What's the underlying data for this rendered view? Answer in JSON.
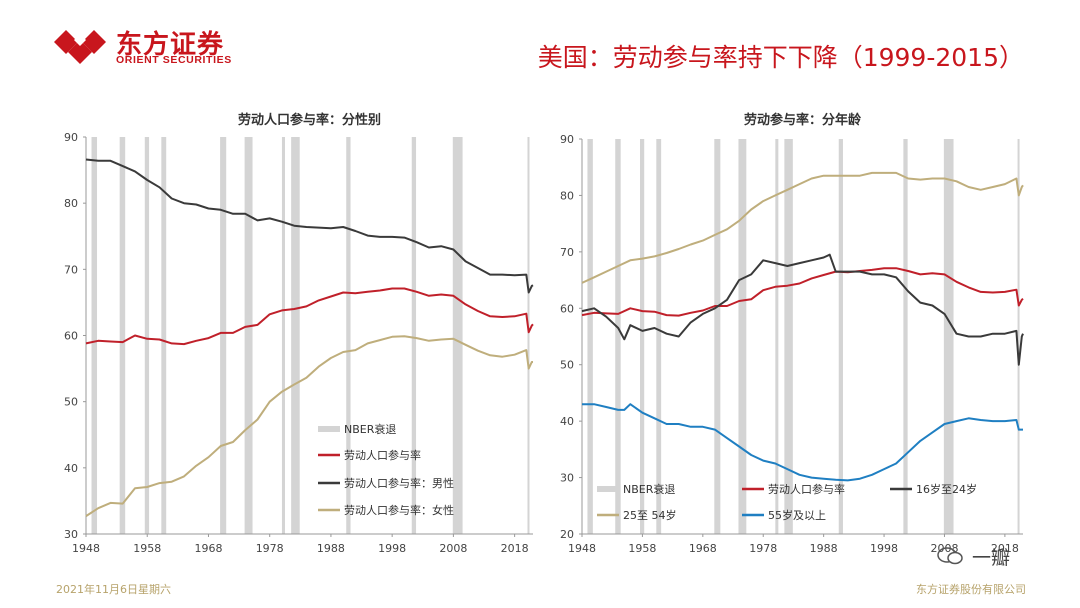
{
  "header": {
    "brand_cn": "东方证券",
    "brand_en": "ORIENT SECURITIES",
    "slide_title": "美国：劳动参与率持下下降（1999-2015）"
  },
  "footer": {
    "date": "2021年11月6日星期六",
    "company": "东方证券股份有限公司",
    "watermark": "一瓣"
  },
  "colors": {
    "brand_red": "#c8161d",
    "total": "#c0202a",
    "male": "#3a3a3a",
    "female": "#bfae7c",
    "age1624": "#3a3a3a",
    "age2554": "#bfae7c",
    "age55": "#1f7fc2",
    "recession": "#d4d4d4",
    "footer_gold": "#b7a36b"
  },
  "chart_data": [
    {
      "type": "line",
      "title": "劳动人口参与率：分性别",
      "xlim": [
        1948,
        2021
      ],
      "ylim": [
        30,
        90
      ],
      "x_ticks": [
        1948,
        1958,
        1968,
        1978,
        1988,
        1998,
        2008,
        2018
      ],
      "y_ticks": [
        30,
        40,
        50,
        60,
        70,
        80,
        90
      ],
      "recessions": [
        [
          1948.9,
          1949.8
        ],
        [
          1953.5,
          1954.4
        ],
        [
          1957.6,
          1958.3
        ],
        [
          1960.3,
          1961.1
        ],
        [
          1969.9,
          1970.9
        ],
        [
          1973.9,
          1975.2
        ],
        [
          1980.0,
          1980.5
        ],
        [
          1981.5,
          1982.9
        ],
        [
          1990.5,
          1991.2
        ],
        [
          2001.2,
          2001.9
        ],
        [
          2007.9,
          2009.5
        ],
        [
          2020.1,
          2020.4
        ]
      ],
      "legend": [
        "NBER衰退",
        "劳动人口参与率",
        "劳动人口参与率：男性",
        "劳动人口参与率：女性"
      ],
      "series": [
        {
          "name": "劳动人口参与率",
          "color_key": "total",
          "x": [
            1948,
            1950,
            1952,
            1954,
            1956,
            1958,
            1960,
            1962,
            1964,
            1966,
            1968,
            1970,
            1972,
            1974,
            1976,
            1978,
            1980,
            1982,
            1984,
            1986,
            1988,
            1990,
            1992,
            1994,
            1996,
            1998,
            2000,
            2002,
            2004,
            2006,
            2008,
            2010,
            2012,
            2014,
            2016,
            2018,
            2019.9,
            2020.3,
            2020.8,
            2021
          ],
          "y": [
            58.8,
            59.2,
            59.1,
            59.0,
            60.0,
            59.5,
            59.4,
            58.8,
            58.7,
            59.2,
            59.6,
            60.4,
            60.4,
            61.3,
            61.6,
            63.2,
            63.8,
            64.0,
            64.4,
            65.3,
            65.9,
            66.5,
            66.4,
            66.6,
            66.8,
            67.1,
            67.1,
            66.6,
            66.0,
            66.2,
            66.0,
            64.7,
            63.7,
            62.9,
            62.8,
            62.9,
            63.3,
            60.5,
            61.5,
            61.7
          ]
        },
        {
          "name": "劳动人口参与率：男性",
          "color_key": "male",
          "x": [
            1948,
            1950,
            1952,
            1954,
            1956,
            1958,
            1960,
            1962,
            1964,
            1966,
            1968,
            1970,
            1972,
            1974,
            1976,
            1978,
            1980,
            1982,
            1984,
            1986,
            1988,
            1990,
            1992,
            1994,
            1996,
            1998,
            2000,
            2002,
            2004,
            2006,
            2008,
            2010,
            2012,
            2014,
            2016,
            2018,
            2019.9,
            2020.3,
            2020.8,
            2021
          ],
          "y": [
            86.6,
            86.4,
            86.4,
            85.6,
            84.8,
            83.5,
            82.4,
            80.7,
            80.0,
            79.8,
            79.2,
            79.0,
            78.4,
            78.4,
            77.4,
            77.7,
            77.2,
            76.6,
            76.4,
            76.3,
            76.2,
            76.4,
            75.8,
            75.1,
            74.9,
            74.9,
            74.8,
            74.1,
            73.3,
            73.5,
            73.0,
            71.2,
            70.2,
            69.2,
            69.2,
            69.1,
            69.2,
            66.5,
            67.5,
            67.6
          ]
        },
        {
          "name": "劳动人口参与率：女性",
          "color_key": "female",
          "x": [
            1948,
            1950,
            1952,
            1954,
            1956,
            1958,
            1960,
            1962,
            1964,
            1966,
            1968,
            1970,
            1972,
            1974,
            1976,
            1978,
            1980,
            1982,
            1984,
            1986,
            1988,
            1990,
            1992,
            1994,
            1996,
            1998,
            2000,
            2002,
            2004,
            2006,
            2008,
            2010,
            2012,
            2014,
            2016,
            2018,
            2019.9,
            2020.3,
            2020.8,
            2021
          ],
          "y": [
            32.7,
            33.9,
            34.7,
            34.6,
            36.9,
            37.1,
            37.7,
            37.9,
            38.7,
            40.3,
            41.6,
            43.3,
            43.9,
            45.7,
            47.3,
            50.0,
            51.5,
            52.6,
            53.6,
            55.3,
            56.6,
            57.5,
            57.8,
            58.8,
            59.3,
            59.8,
            59.9,
            59.6,
            59.2,
            59.4,
            59.5,
            58.6,
            57.7,
            57.0,
            56.8,
            57.1,
            57.8,
            55.0,
            56.0,
            56.0
          ]
        }
      ]
    },
    {
      "type": "line",
      "title": "劳动参与率：分年龄",
      "xlim": [
        1948,
        2021
      ],
      "ylim": [
        20,
        90
      ],
      "x_ticks": [
        1948,
        1958,
        1968,
        1978,
        1988,
        1998,
        2008,
        2018
      ],
      "y_ticks": [
        20,
        30,
        40,
        50,
        60,
        70,
        80,
        90
      ],
      "recessions": [
        [
          1948.9,
          1949.8
        ],
        [
          1953.5,
          1954.4
        ],
        [
          1957.6,
          1958.3
        ],
        [
          1960.3,
          1961.1
        ],
        [
          1969.9,
          1970.9
        ],
        [
          1973.9,
          1975.2
        ],
        [
          1980.0,
          1980.5
        ],
        [
          1981.5,
          1982.9
        ],
        [
          1990.5,
          1991.2
        ],
        [
          2001.2,
          2001.9
        ],
        [
          2007.9,
          2009.5
        ],
        [
          2020.1,
          2020.4
        ]
      ],
      "legend": [
        "NBER衰退",
        "劳动人口参与率",
        "16岁至24岁",
        "25至 54岁",
        "55岁及以上"
      ],
      "series": [
        {
          "name": "劳动人口参与率",
          "color_key": "total",
          "x": [
            1948,
            1950,
            1952,
            1954,
            1956,
            1958,
            1960,
            1962,
            1964,
            1966,
            1968,
            1970,
            1972,
            1974,
            1976,
            1978,
            1980,
            1982,
            1984,
            1986,
            1988,
            1990,
            1992,
            1994,
            1996,
            1998,
            2000,
            2002,
            2004,
            2006,
            2008,
            2010,
            2012,
            2014,
            2016,
            2018,
            2019.9,
            2020.3,
            2020.8,
            2021
          ],
          "y": [
            58.8,
            59.2,
            59.1,
            59.0,
            60.0,
            59.5,
            59.4,
            58.8,
            58.7,
            59.2,
            59.6,
            60.4,
            60.4,
            61.3,
            61.6,
            63.2,
            63.8,
            64.0,
            64.4,
            65.3,
            65.9,
            66.5,
            66.4,
            66.6,
            66.8,
            67.1,
            67.1,
            66.6,
            66.0,
            66.2,
            66.0,
            64.7,
            63.7,
            62.9,
            62.8,
            62.9,
            63.3,
            60.5,
            61.5,
            61.7
          ]
        },
        {
          "name": "16岁至24岁",
          "color_key": "age1624",
          "x": [
            1948,
            1950,
            1952,
            1954,
            1955,
            1956,
            1958,
            1960,
            1962,
            1964,
            1966,
            1968,
            1970,
            1972,
            1974,
            1976,
            1978,
            1980,
            1982,
            1984,
            1986,
            1988,
            1989,
            1990,
            1992,
            1994,
            1996,
            1998,
            2000,
            2002,
            2004,
            2006,
            2008,
            2010,
            2012,
            2014,
            2016,
            2018,
            2019.9,
            2020.3,
            2020.8,
            2021
          ],
          "y": [
            59.5,
            60.0,
            58.5,
            56.5,
            54.5,
            57.0,
            56.0,
            56.5,
            55.5,
            55.0,
            57.5,
            59.0,
            60.0,
            61.5,
            65.0,
            66.0,
            68.5,
            68.0,
            67.5,
            68.0,
            68.5,
            69.0,
            69.5,
            66.5,
            66.5,
            66.5,
            66.0,
            66.0,
            65.5,
            63.0,
            61.0,
            60.5,
            59.0,
            55.5,
            55.0,
            55.0,
            55.5,
            55.5,
            56.0,
            50.0,
            55.0,
            55.5
          ]
        },
        {
          "name": "25至 54岁",
          "color_key": "age2554",
          "x": [
            1948,
            1950,
            1952,
            1954,
            1956,
            1958,
            1960,
            1962,
            1964,
            1966,
            1968,
            1970,
            1972,
            1974,
            1976,
            1978,
            1980,
            1982,
            1984,
            1986,
            1988,
            1990,
            1992,
            1994,
            1996,
            1998,
            2000,
            2002,
            2004,
            2006,
            2008,
            2010,
            2012,
            2014,
            2016,
            2018,
            2019.9,
            2020.3,
            2020.8,
            2021
          ],
          "y": [
            64.5,
            65.5,
            66.5,
            67.5,
            68.5,
            68.8,
            69.2,
            69.8,
            70.5,
            71.3,
            72.0,
            73.0,
            74.0,
            75.5,
            77.5,
            79.0,
            80.0,
            81.0,
            82.0,
            83.0,
            83.5,
            83.5,
            83.5,
            83.5,
            84.0,
            84.0,
            84.0,
            83.0,
            82.8,
            83.0,
            83.0,
            82.5,
            81.5,
            81.0,
            81.5,
            82.0,
            83.0,
            80.0,
            81.5,
            81.8
          ]
        },
        {
          "name": "55岁及以上",
          "color_key": "age55",
          "x": [
            1948,
            1950,
            1952,
            1954,
            1955,
            1956,
            1958,
            1960,
            1962,
            1964,
            1966,
            1968,
            1970,
            1972,
            1974,
            1976,
            1978,
            1980,
            1982,
            1984,
            1986,
            1988,
            1990,
            1992,
            1994,
            1996,
            1998,
            2000,
            2002,
            2004,
            2006,
            2008,
            2010,
            2012,
            2014,
            2016,
            2018,
            2019.9,
            2020.3,
            2020.8,
            2021
          ],
          "y": [
            43.0,
            43.0,
            42.5,
            42.0,
            42.0,
            43.0,
            41.5,
            40.5,
            39.5,
            39.5,
            39.0,
            39.0,
            38.5,
            37.0,
            35.5,
            34.0,
            33.0,
            32.5,
            31.5,
            30.5,
            30.0,
            29.8,
            29.6,
            29.5,
            29.8,
            30.5,
            31.5,
            32.5,
            34.5,
            36.5,
            38.0,
            39.5,
            40.0,
            40.5,
            40.2,
            40.0,
            40.0,
            40.2,
            38.5,
            38.5,
            38.5
          ]
        }
      ]
    }
  ]
}
